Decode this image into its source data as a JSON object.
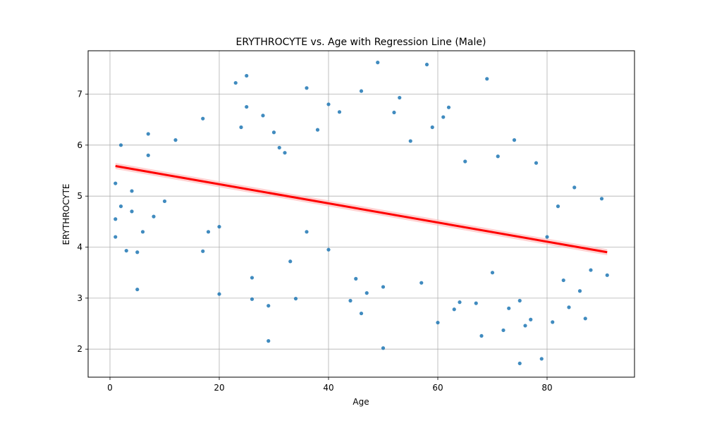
{
  "chart_data": {
    "type": "scatter",
    "title": "ERYTHROCYTE vs. Age with Regression Line (Male)",
    "xlabel": "Age",
    "ylabel": "ERYTHROCYTE",
    "xlim": [
      -4,
      96
    ],
    "ylim": [
      1.45,
      7.85
    ],
    "xticks": [
      0,
      20,
      40,
      60,
      80
    ],
    "yticks": [
      2,
      3,
      4,
      5,
      6,
      7
    ],
    "grid": true,
    "colors": {
      "points": "#1f77b4",
      "regression": "#ff0000",
      "ci_band": "#ffb3b3",
      "grid": "#b0b0b0"
    },
    "regression": {
      "x": [
        1,
        91
      ],
      "y": [
        5.59,
        3.9
      ],
      "ci_half_width": 0.06
    },
    "points_visible_sample": {
      "x": [
        1,
        1,
        1,
        2,
        2,
        3,
        4,
        4,
        5,
        5,
        6,
        7,
        7,
        8,
        10,
        12,
        17,
        17,
        18,
        20,
        20,
        23,
        24,
        25,
        25,
        26,
        26,
        28,
        29,
        29,
        30,
        31,
        32,
        33,
        34,
        36,
        36,
        38,
        40,
        40,
        42,
        44,
        45,
        46,
        46,
        47,
        49,
        50,
        50,
        52,
        53,
        55,
        57,
        58,
        59,
        60,
        61,
        62,
        63,
        64,
        65,
        67,
        68,
        69,
        70,
        71,
        72,
        73,
        74,
        75,
        75,
        76,
        77,
        78,
        79,
        80,
        81,
        82,
        83,
        84,
        85,
        86,
        87,
        88,
        90,
        91
      ],
      "y": [
        4.55,
        5.25,
        4.2,
        6.0,
        4.8,
        3.93,
        4.7,
        5.1,
        3.17,
        3.9,
        4.3,
        6.22,
        5.8,
        4.6,
        4.9,
        6.1,
        3.92,
        6.52,
        4.3,
        3.08,
        4.4,
        7.22,
        6.35,
        7.36,
        6.75,
        3.4,
        2.98,
        6.58,
        2.85,
        2.16,
        6.25,
        5.95,
        5.85,
        3.72,
        2.99,
        7.12,
        4.3,
        6.3,
        6.8,
        3.95,
        6.65,
        2.95,
        3.38,
        7.06,
        2.7,
        3.1,
        7.62,
        2.02,
        3.22,
        6.64,
        6.93,
        6.08,
        3.3,
        7.58,
        6.35,
        2.52,
        6.55,
        6.74,
        2.78,
        2.92,
        5.68,
        2.9,
        2.26,
        7.3,
        3.5,
        5.78,
        2.37,
        2.8,
        6.1,
        2.95,
        1.72,
        2.46,
        2.58,
        5.65,
        1.81,
        4.2,
        2.53,
        4.8,
        3.35,
        2.82,
        5.17,
        3.14,
        2.6,
        3.55,
        4.95,
        3.45
      ]
    }
  }
}
